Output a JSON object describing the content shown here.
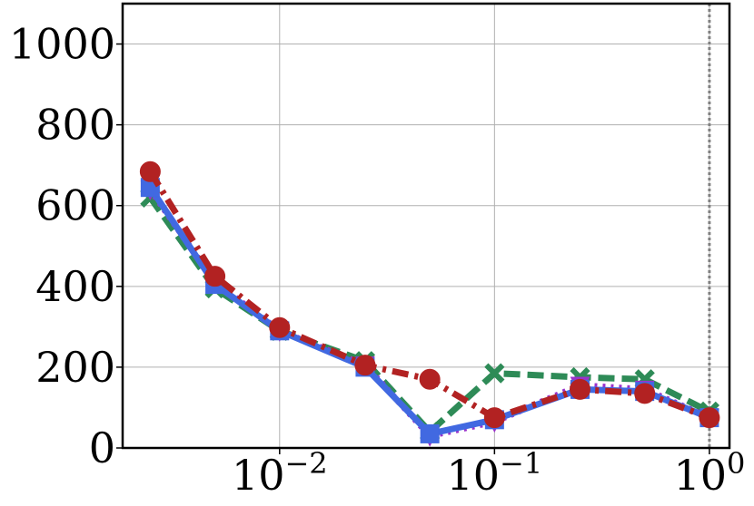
{
  "chart_data": {
    "type": "line",
    "xscale": "log",
    "x": [
      0.0025,
      0.005,
      0.01,
      0.025,
      0.05,
      0.1,
      0.25,
      0.5,
      1
    ],
    "series": [
      {
        "color": "#2e8b57",
        "linestyle": "dashed",
        "marker": "x",
        "values": [
          620,
          395,
          290,
          215,
          40,
          185,
          175,
          170,
          90
        ]
      },
      {
        "color": "#9932cc",
        "linestyle": "dotted",
        "marker": "triangle",
        "values": [
          640,
          410,
          290,
          205,
          30,
          65,
          155,
          145,
          75
        ]
      },
      {
        "color": "#4169e1",
        "linestyle": "solid",
        "marker": "square",
        "values": [
          645,
          405,
          290,
          200,
          35,
          70,
          145,
          140,
          75
        ]
      },
      {
        "color": "#b22222",
        "linestyle": "dashdot",
        "marker": "circle",
        "values": [
          684,
          425,
          298,
          205,
          170,
          75,
          145,
          135,
          75
        ]
      }
    ],
    "xlim": [
      0.00186,
      1.24
    ],
    "ylim": [
      0,
      1100
    ],
    "xticks": [
      {
        "value": 0.01,
        "label": "10",
        "exponent": "−2"
      },
      {
        "value": 0.1,
        "label": "10",
        "exponent": "−1"
      },
      {
        "value": 1,
        "label": "10",
        "exponent": "0"
      }
    ],
    "yticks": [
      0,
      200,
      400,
      600,
      800,
      1000
    ],
    "grid": true,
    "vline": 1
  }
}
